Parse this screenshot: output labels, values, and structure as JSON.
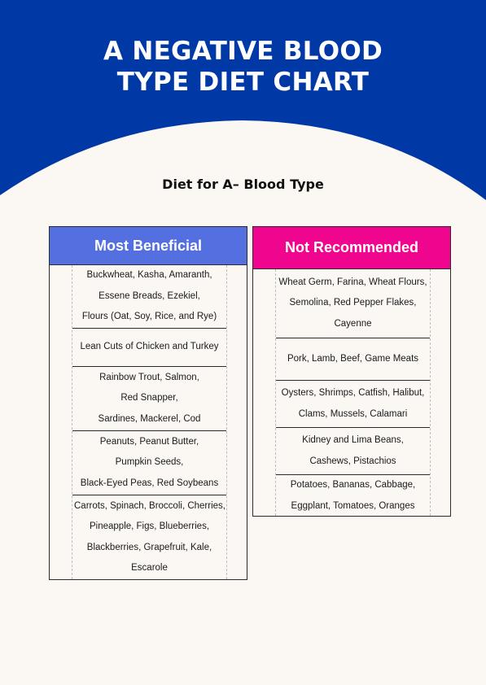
{
  "header": {
    "title_line1": "A NEGATIVE BLOOD",
    "title_line2": "TYPE DIET CHART",
    "background_color": "#0039a6"
  },
  "subtitle": "Diet for A– Blood Type",
  "beneficial": {
    "heading": "Most Beneficial",
    "color": "#5470e0",
    "rows": [
      [
        "Buckwheat, Kasha, Amaranth,",
        "Essene Breads, Ezekiel,",
        "Flours (Oat, Soy, Rice, and Rye)"
      ],
      [
        "Lean Cuts of Chicken and Turkey"
      ],
      [
        "Rainbow Trout, Salmon,",
        "Red Snapper,",
        "Sardines, Mackerel, Cod"
      ],
      [
        "Peanuts, Peanut Butter,",
        "Pumpkin Seeds,",
        "Black-Eyed Peas, Red Soybeans"
      ],
      [
        "Carrots, Spinach, Broccoli, Cherries,",
        "Pineapple, Figs, Blueberries,",
        "Blackberries, Grapefruit, Kale,",
        "Escarole"
      ]
    ]
  },
  "not_recommended": {
    "heading": "Not Recommended",
    "color": "#f0068e",
    "rows": [
      [
        "Wheat Germ, Farina, Wheat Flours,",
        "Semolina, Red Pepper Flakes,",
        "Cayenne"
      ],
      [
        "Pork, Lamb, Beef, Game Meats"
      ],
      [
        "Oysters, Shrimps, Catfish, Halibut,",
        "Clams, Mussels, Calamari"
      ],
      [
        "Kidney and Lima Beans,",
        "Cashews, Pistachios"
      ],
      [
        "Potatoes, Bananas, Cabbage,",
        "Eggplant, Tomatoes, Oranges"
      ]
    ]
  }
}
